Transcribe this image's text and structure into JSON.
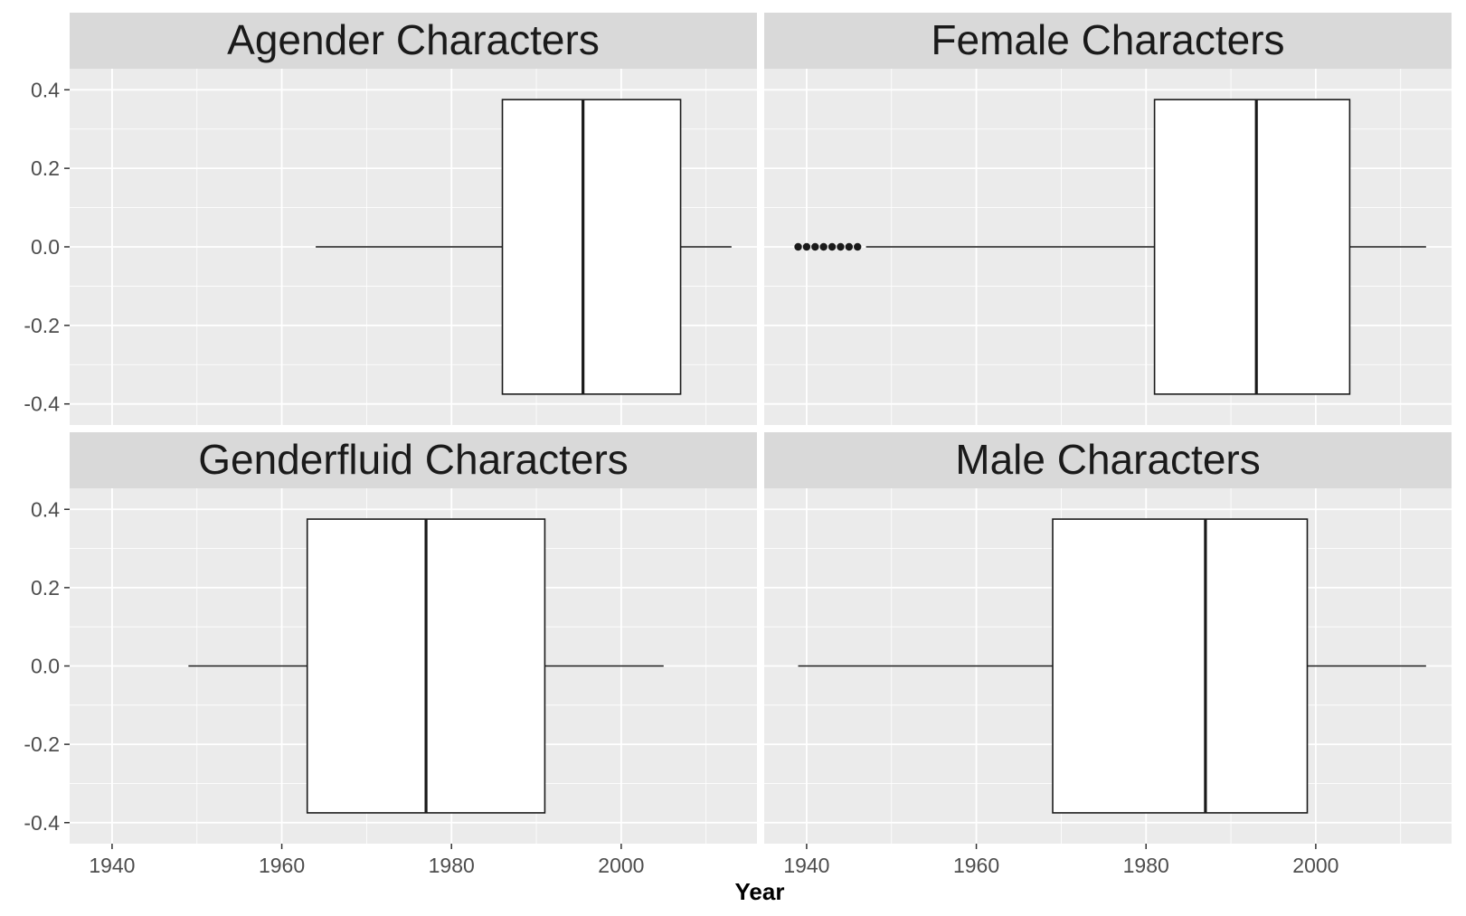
{
  "chart_data": {
    "type": "boxplot",
    "layout": "facet-grid 2x2",
    "xlabel": "Year",
    "ylabel": "",
    "xlim": [
      1935,
      2016
    ],
    "ylim": [
      -0.4,
      0.4
    ],
    "x_ticks": [
      "1940",
      "1960",
      "1980",
      "2000"
    ],
    "y_ticks": [
      "0.4",
      "0.2",
      "0.0",
      "-0.2",
      "-0.4"
    ],
    "grid": true,
    "colors": {
      "panel_background": "#ebebeb",
      "strip_background": "#d9d9d9",
      "grid": "#ffffff",
      "box_fill": "#ffffff",
      "box_line": "#1a1a1a"
    },
    "panels": [
      {
        "title": "Agender Characters",
        "whisker_low": 1964,
        "q1": 1986,
        "median": 1995.5,
        "q3": 2007,
        "whisker_high": 2013,
        "outliers": []
      },
      {
        "title": "Female Characters",
        "whisker_low": 1947,
        "q1": 1981,
        "median": 1993,
        "q3": 2004,
        "whisker_high": 2013,
        "outliers": [
          1939,
          1940,
          1941,
          1942,
          1943,
          1944,
          1945,
          1946
        ]
      },
      {
        "title": "Genderfluid Characters",
        "whisker_low": 1949,
        "q1": 1963,
        "median": 1977,
        "q3": 1991,
        "whisker_high": 2005,
        "outliers": []
      },
      {
        "title": "Male Characters",
        "whisker_low": 1939,
        "q1": 1969,
        "median": 1987,
        "q3": 1999,
        "whisker_high": 2013,
        "outliers": []
      }
    ]
  }
}
